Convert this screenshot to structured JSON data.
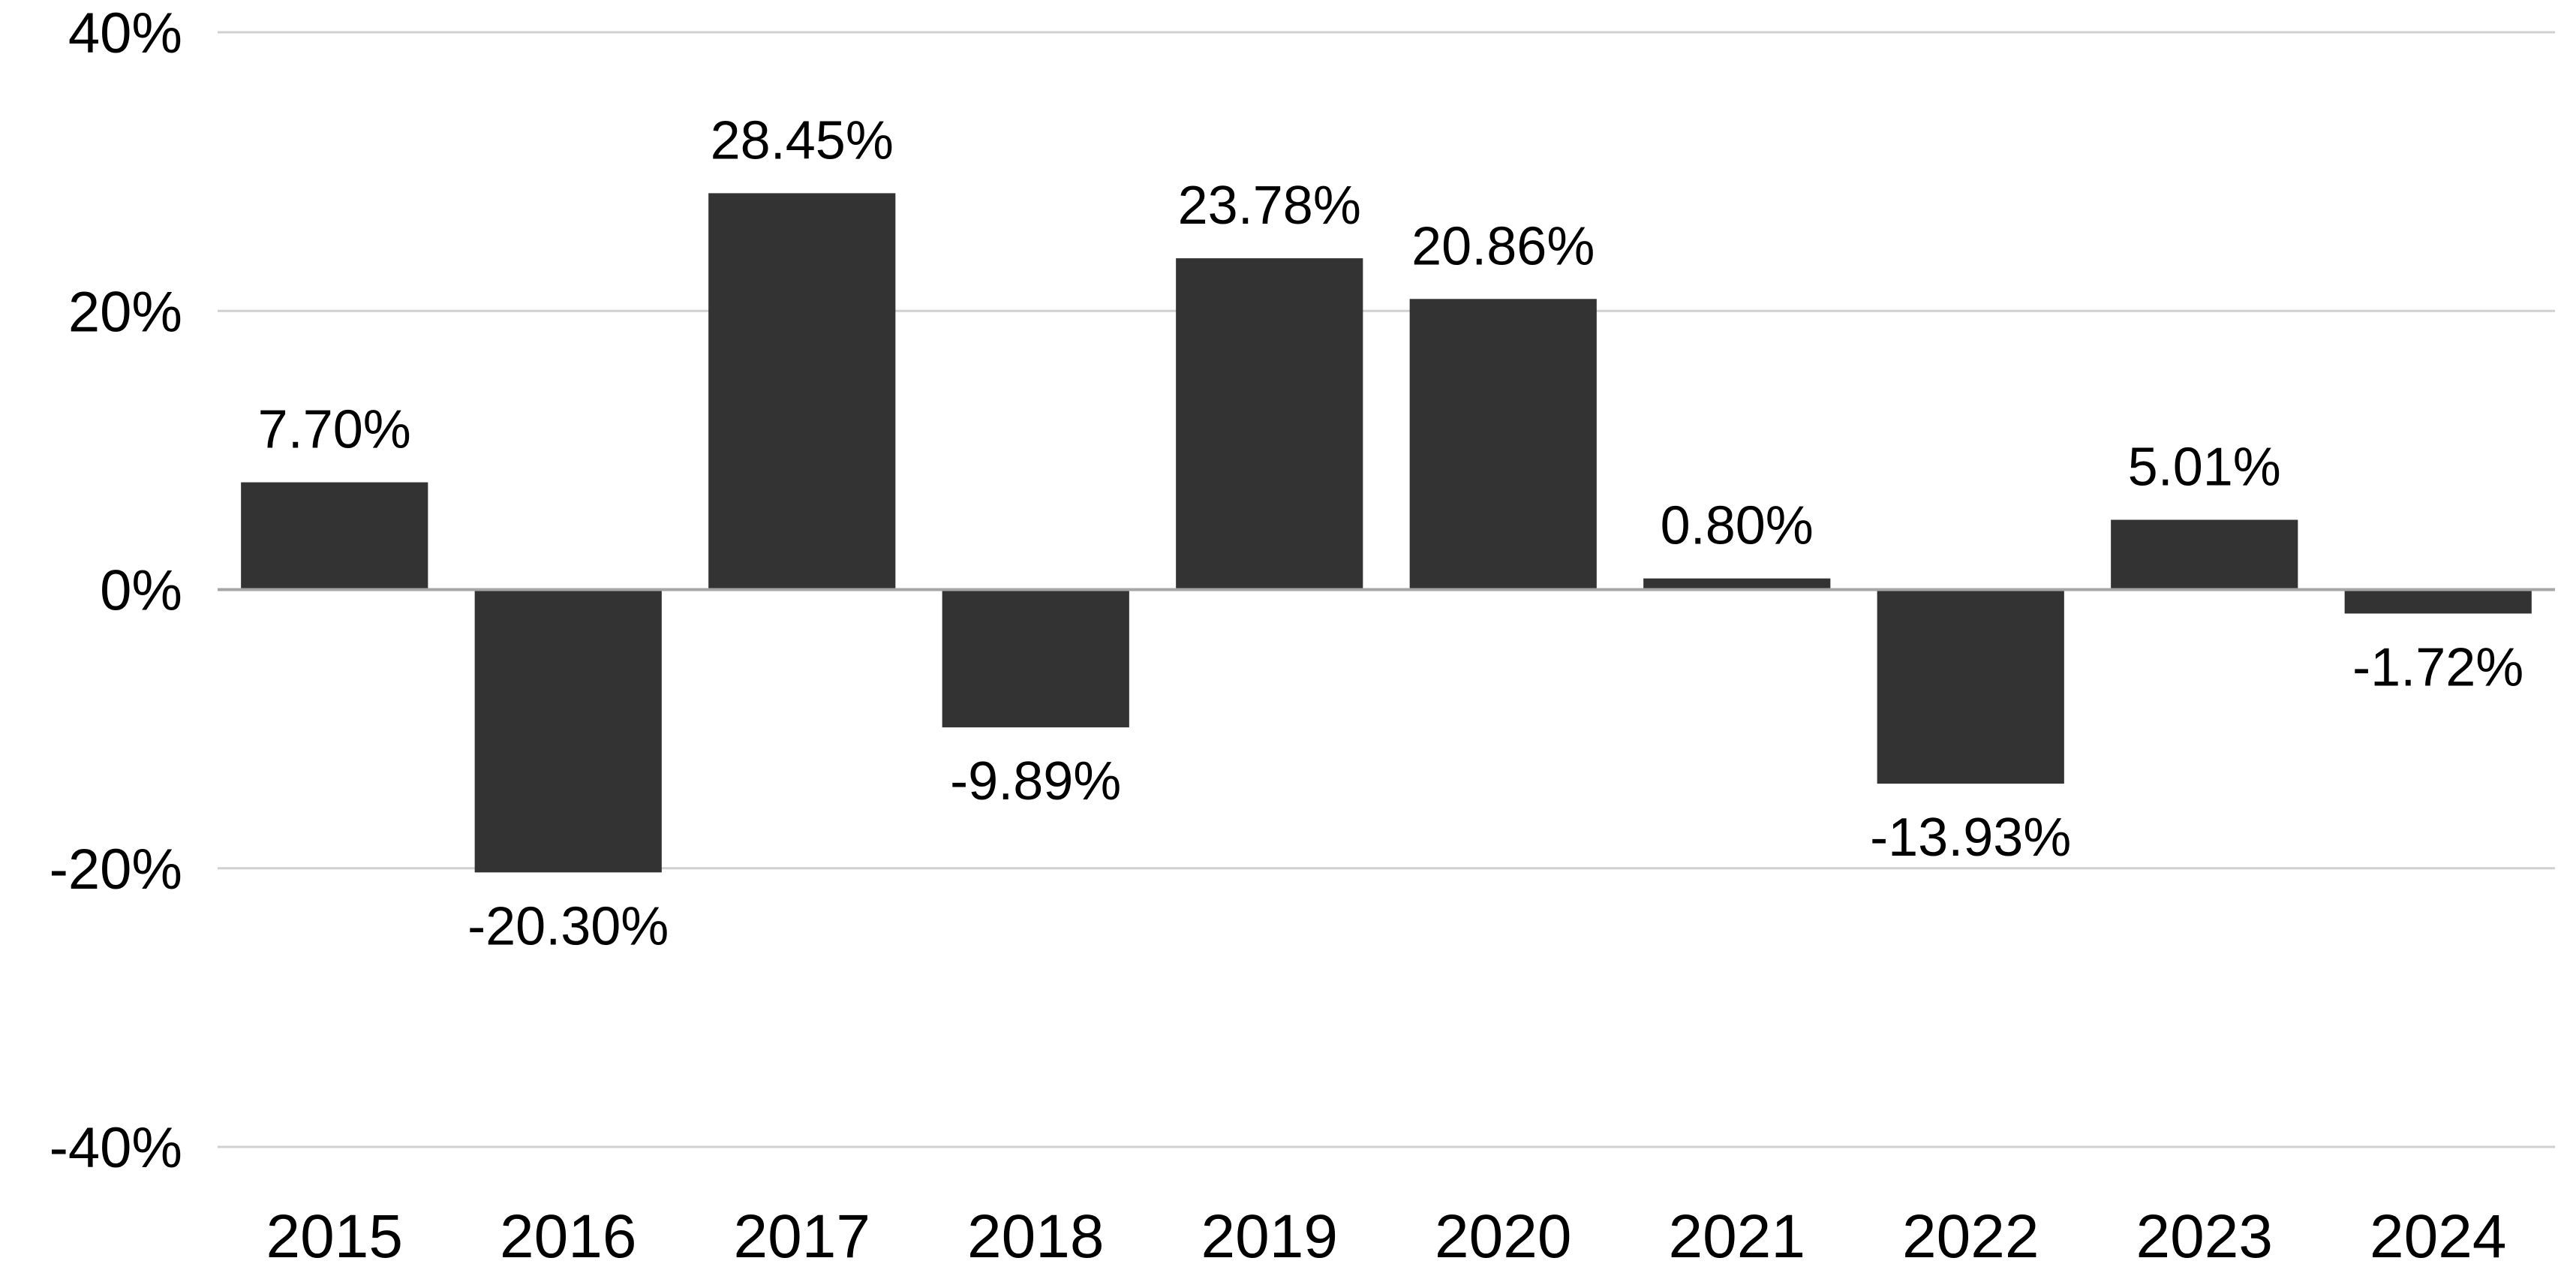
{
  "chart_data": {
    "type": "bar",
    "categories": [
      "2015",
      "2016",
      "2017",
      "2018",
      "2019",
      "2020",
      "2021",
      "2022",
      "2023",
      "2024"
    ],
    "values": [
      7.7,
      -20.3,
      28.45,
      -9.89,
      23.78,
      20.86,
      0.8,
      -13.93,
      5.01,
      -1.72
    ],
    "data_labels": [
      "7.70%",
      "-20.30%",
      "28.45%",
      "-9.89%",
      "23.78%",
      "20.86%",
      "0.80%",
      "-13.93%",
      "5.01%",
      "-1.72%"
    ],
    "ylim": [
      -40,
      40
    ],
    "yticks": [
      40,
      20,
      0,
      -20,
      -40
    ],
    "ytick_labels": [
      "40%",
      "20%",
      "0%",
      "-20%",
      "-40%"
    ],
    "grid": true,
    "bar_color": "#333333",
    "grid_color": "#d0d0d0",
    "zero_line_color": "#a6a6a6"
  }
}
